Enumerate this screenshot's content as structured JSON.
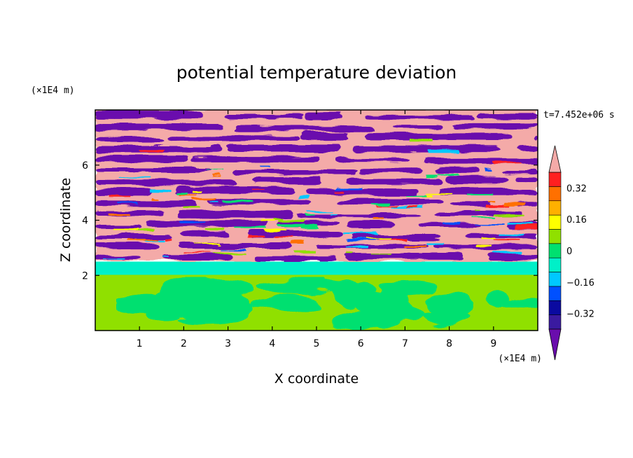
{
  "chart_data": {
    "type": "heatmap",
    "title": "potential temperature deviation",
    "xlabel": "X coordinate",
    "ylabel": "Z coordinate",
    "x_unit_label": "(×1E4 m)",
    "y_unit_label": "(×1E4 m)",
    "time_label": "t=7.452e+06 s",
    "xlim": [
      0,
      10
    ],
    "ylim": [
      0,
      8
    ],
    "x_ticks": [
      1,
      2,
      3,
      4,
      5,
      6,
      7,
      8,
      9
    ],
    "x_tick_labels": [
      "1",
      "2",
      "3",
      "4",
      "5",
      "6",
      "7",
      "8",
      "9"
    ],
    "y_ticks": [
      2,
      4,
      6
    ],
    "y_tick_labels": [
      "2",
      "4",
      "6"
    ],
    "colorbar": {
      "levels": [
        -0.48,
        -0.4,
        -0.32,
        -0.24,
        -0.16,
        -0.08,
        0,
        0.08,
        0.16,
        0.24,
        0.32,
        0.4,
        0.48
      ],
      "tick_values": [
        -0.32,
        -0.16,
        0,
        0.16,
        0.32
      ],
      "tick_labels": [
        "−0.32",
        "−0.16",
        "0",
        "0.16",
        "0.32"
      ],
      "colors": [
        "#6a0dad",
        "#3a1aa0",
        "#0a0aa0",
        "#0050ff",
        "#00c8ff",
        "#00f0c8",
        "#00e070",
        "#90e000",
        "#ffff00",
        "#ffb000",
        "#ff7000",
        "#ff2020",
        "#f4aaa8"
      ]
    },
    "fields": {
      "lower_layer": {
        "z_range": [
          0,
          2
        ],
        "value_range": [
          0,
          0.08
        ],
        "colors": [
          "#00e070",
          "#90e000"
        ]
      },
      "transition": {
        "z_range": [
          2,
          2.5
        ],
        "value": -0.04,
        "color": "#00f0c8"
      },
      "banded_layer": {
        "z_range": [
          2.5,
          8
        ],
        "low": -0.48,
        "high": 0.48,
        "colors": [
          "#6a0dad",
          "#f4aaa8"
        ]
      }
    }
  }
}
